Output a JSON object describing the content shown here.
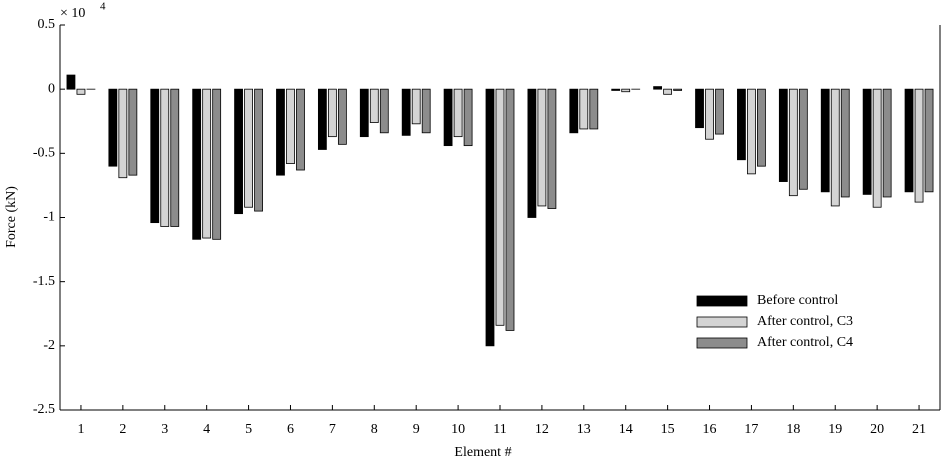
{
  "chart_data": {
    "type": "bar",
    "y_scale_base": "× 10",
    "y_scale_exponent": "4",
    "x_label": "Element #",
    "y_label": "Force (kN)",
    "categories": [
      "1",
      "2",
      "3",
      "4",
      "5",
      "6",
      "7",
      "8",
      "9",
      "10",
      "11",
      "12",
      "13",
      "14",
      "15",
      "16",
      "17",
      "18",
      "19",
      "20",
      "21"
    ],
    "series": [
      {
        "name": "Before control",
        "color": "#000000",
        "values": [
          0.11,
          -0.6,
          -1.04,
          -1.17,
          -0.97,
          -0.67,
          -0.47,
          -0.37,
          -0.36,
          -0.44,
          -2.0,
          -1.0,
          -0.34,
          -0.01,
          0.02,
          -0.3,
          -0.55,
          -0.72,
          -0.8,
          -0.82,
          -0.8
        ]
      },
      {
        "name": "After control, C3",
        "color": "#d4d4d4",
        "values": [
          -0.04,
          -0.69,
          -1.07,
          -1.16,
          -0.92,
          -0.58,
          -0.37,
          -0.26,
          -0.27,
          -0.37,
          -1.84,
          -0.91,
          -0.31,
          -0.02,
          -0.04,
          -0.39,
          -0.66,
          -0.83,
          -0.91,
          -0.92,
          -0.88
        ]
      },
      {
        "name": "After control, C4",
        "color": "#8c8c8c",
        "values": [
          0,
          -0.67,
          -1.07,
          -1.17,
          -0.95,
          -0.63,
          -0.43,
          -0.34,
          -0.34,
          -0.44,
          -1.88,
          -0.93,
          -0.31,
          0,
          -0.01,
          -0.35,
          -0.6,
          -0.78,
          -0.84,
          -0.84,
          -0.8
        ]
      }
    ],
    "ylim": [
      -2.5,
      0.5
    ],
    "yticks": [
      0.5,
      0,
      -0.5,
      -1,
      -1.5,
      -2,
      -2.5
    ],
    "legend": "lower right"
  }
}
